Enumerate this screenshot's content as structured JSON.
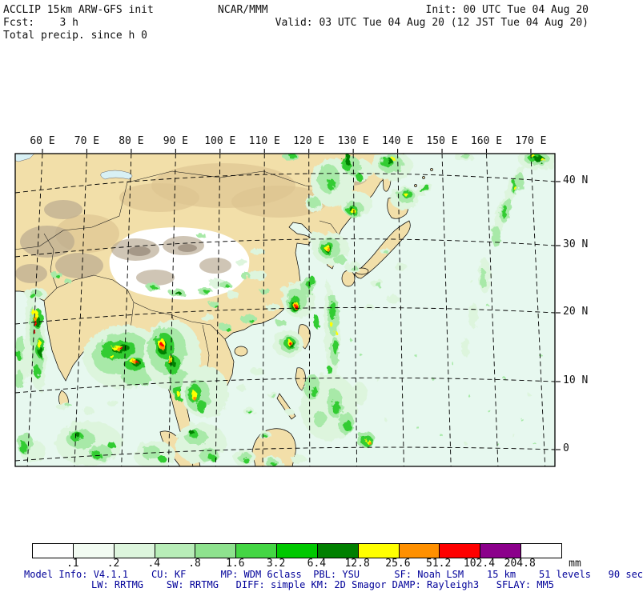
{
  "header": {
    "line1_left": "ACCLIP 15km ARW-GFS init",
    "line1_center": "NCAR/MMM",
    "line1_right": "Init: 00 UTC Tue 04 Aug 20",
    "line2_left": "Fcst:    3 h",
    "line2_right": "Valid: 03 UTC Tue 04 Aug 20 (12 JST Tue 04 Aug 20)",
    "line3_left": "Total precip. since h 0"
  },
  "map": {
    "lon_labels": [
      "60 E",
      "70 E",
      "80 E",
      "90 E",
      "100 E",
      "110 E",
      "120 E",
      "130 E",
      "140 E",
      "150 E",
      "160 E",
      "170 E"
    ],
    "lat_labels": [
      "40 N",
      "30 N",
      "20 N",
      "10 N",
      "0"
    ]
  },
  "colorbar": {
    "tick_labels": [
      ".1",
      ".2",
      ".4",
      ".8",
      "1.6",
      "3.2",
      "6.4",
      "12.8",
      "25.6",
      "51.2",
      "102.4",
      "204.8"
    ],
    "unit": "mm",
    "cell_colors": [
      "#ffffff",
      "#f2fbf2",
      "#ddf5dd",
      "#b8edb8",
      "#8ee28e",
      "#44d644",
      "#00c800",
      "#008000",
      "#ffff00",
      "#ff9000",
      "#ff0000",
      "#8b008b",
      "#ffffff"
    ]
  },
  "footer": {
    "line1": "Model Info: V4.1.1    CU: KF      MP: WDM 6class  PBL: YSU      SF: Noah LSM    15 km    51 levels   90 sec",
    "line2": "LW: RRTMG    SW: RRTMG   DIFF: simple KM: 2D Smagor DAMP: Rayleigh3   SFLAY: MM5"
  },
  "colors": {
    "text": "#111111",
    "footer": "#000099",
    "ocean": "#e7f8ef",
    "land": "#f2dfa9",
    "land_dark": "#dcc390",
    "mountain": "#b5a68d",
    "plateau": "#ffffff",
    "lake": "#d8f0f4",
    "precip": {
      "p1": "#ddf5dd",
      "p2": "#a8e9a8",
      "p3": "#33cc33",
      "p4": "#008000",
      "yellow": "#ffff00",
      "orange": "#ff9000",
      "red": "#ff0000",
      "purple": "#8b008b"
    }
  }
}
